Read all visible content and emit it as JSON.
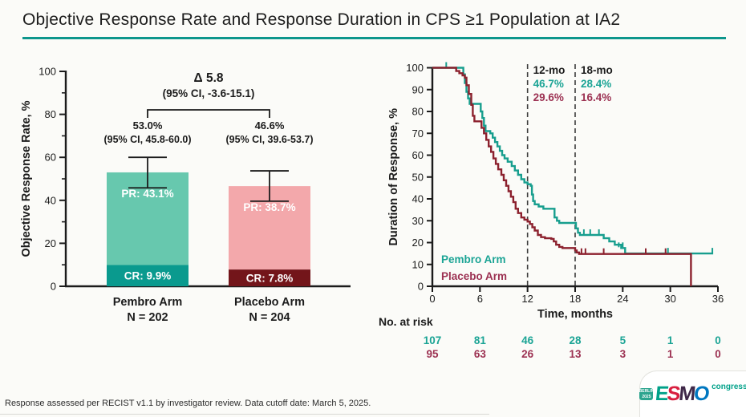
{
  "page": {
    "title": "Objective Response Rate and Response Duration in CPS ≥1 Population at IA2",
    "footnote": "Response assessed per RECIST v1.1 by investigator review. Data cutoff date: March 5, 2025."
  },
  "colors": {
    "title_underline": "#0d968c",
    "axis": "#1b1b1b",
    "pembro_light": "#67c8ae",
    "pembro_dark": "#0a9a8e",
    "placebo_light": "#f3a8ab",
    "placebo_dark": "#73151a",
    "pembro_line": "#179e8e",
    "placebo_line": "#8c212e",
    "pembro_text": "#1ba495",
    "placebo_text": "#9c3152",
    "milestone_label": "#1b1b1b",
    "dashed_line": "#3c3c3c"
  },
  "logo": {
    "badge": [
      "BERLIN",
      "2025"
    ],
    "badge_color": "#2ba48e",
    "letters": [
      {
        "ch": "E",
        "color": "#00a189"
      },
      {
        "ch": "S",
        "color": "#d81f3f"
      },
      {
        "ch": "M",
        "color": "#3f2849"
      },
      {
        "ch": "O",
        "color": "#0077c0"
      }
    ],
    "congress": "congress",
    "congress_color": "#00a189"
  },
  "chart_data": [
    {
      "type": "bar",
      "panel": "orr",
      "ylabel": "Objective Response Rate, %",
      "ylim": [
        0,
        100
      ],
      "yticks_labeled": [
        0,
        20,
        40,
        60,
        80,
        100
      ],
      "yticks_minor": [
        10,
        30,
        50,
        70,
        90
      ],
      "categories": [
        "Pembro Arm",
        "Placebo Arm"
      ],
      "n_labels": [
        "N = 202",
        "N = 204"
      ],
      "stack": {
        "cr": {
          "values": [
            9.9,
            7.8
          ],
          "labels": [
            "CR: 9.9%",
            "CR: 7.8%"
          ],
          "colors": [
            "#0a9a8e",
            "#73151a"
          ]
        },
        "pr": {
          "values": [
            43.1,
            38.7
          ],
          "labels": [
            "PR: 43.1%",
            "PR: 38.7%"
          ],
          "colors": [
            "#67c8ae",
            "#f3a8ab"
          ]
        }
      },
      "totals": [
        53.0,
        46.6
      ],
      "total_labels": [
        "53.0%",
        "46.6%"
      ],
      "ci_labels": [
        "(95% CI, 45.8-60.0)",
        "(95% CI, 39.6-53.7)"
      ],
      "ci": [
        [
          45.8,
          60.0
        ],
        [
          39.6,
          53.7
        ]
      ],
      "delta": {
        "label": "Δ 5.8",
        "ci": "(95% CI, -3.6-15.1)"
      }
    },
    {
      "type": "line",
      "panel": "dor",
      "ylabel": "Duration of Response, %",
      "xlabel": "Time, months",
      "xlim": [
        0,
        36
      ],
      "ylim": [
        0,
        100
      ],
      "xticks": [
        0,
        6,
        12,
        18,
        24,
        30,
        36
      ],
      "ytick_step": 10,
      "milestone_lines": [
        {
          "x": 12,
          "label": "12-mo",
          "pembro": "46.7%",
          "placebo": "29.6%"
        },
        {
          "x": 18,
          "label": "18-mo",
          "pembro": "28.4%",
          "placebo": "16.4%"
        }
      ],
      "series": [
        {
          "key": "pembro",
          "name": "Pembro Arm",
          "color": "#179e8e",
          "steps": [
            [
              0,
              100
            ],
            [
              3.7,
              100
            ],
            [
              3.9,
              97
            ],
            [
              4.1,
              93
            ],
            [
              4.3,
              89
            ],
            [
              4.5,
              86
            ],
            [
              4.7,
              83.5
            ],
            [
              5.9,
              83.5
            ],
            [
              6.1,
              80
            ],
            [
              6.3,
              77
            ],
            [
              6.5,
              73.5
            ],
            [
              6.7,
              71
            ],
            [
              7.3,
              70
            ],
            [
              7.6,
              68
            ],
            [
              7.9,
              66
            ],
            [
              8.2,
              64
            ],
            [
              8.5,
              62
            ],
            [
              8.8,
              60
            ],
            [
              9.1,
              58.5
            ],
            [
              9.5,
              57
            ],
            [
              10,
              55
            ],
            [
              10.4,
              53
            ],
            [
              10.8,
              51
            ],
            [
              11.2,
              49
            ],
            [
              11.6,
              47.5
            ],
            [
              12,
              46.7
            ],
            [
              12.4,
              46
            ],
            [
              12.55,
              42
            ],
            [
              12.7,
              39
            ],
            [
              12.9,
              37.5
            ],
            [
              13.4,
              36.5
            ],
            [
              14,
              35.5
            ],
            [
              15.2,
              35.5
            ],
            [
              15.4,
              31.5
            ],
            [
              15.7,
              30
            ],
            [
              16,
              29
            ],
            [
              17.9,
              29
            ],
            [
              18.1,
              26.5
            ],
            [
              18.35,
              24.5
            ],
            [
              18.6,
              23.5
            ],
            [
              21.3,
              23.5
            ],
            [
              21.6,
              22
            ],
            [
              22.3,
              20.5
            ],
            [
              23,
              19
            ],
            [
              23.8,
              17.5
            ],
            [
              24.3,
              15
            ],
            [
              35.4,
              15
            ]
          ],
          "censors": [
            [
              1.75,
              100
            ],
            [
              19.1,
              23.5
            ],
            [
              19.9,
              23.5
            ],
            [
              21,
              23.5
            ],
            [
              23.5,
              17.5
            ],
            [
              24,
              17.5
            ],
            [
              29.7,
              15
            ],
            [
              35.3,
              15
            ]
          ]
        },
        {
          "key": "placebo",
          "name": "Placebo Arm",
          "color": "#8c212e",
          "steps": [
            [
              0,
              100
            ],
            [
              2.8,
              100
            ],
            [
              3,
              98.5
            ],
            [
              3.4,
              97.5
            ],
            [
              3.8,
              96.5
            ],
            [
              4.1,
              95.5
            ],
            [
              4.3,
              92
            ],
            [
              4.6,
              88
            ],
            [
              4.9,
              83
            ],
            [
              5.1,
              78
            ],
            [
              5.3,
              75.5
            ],
            [
              6,
              75.5
            ],
            [
              6.2,
              72.5
            ],
            [
              6.5,
              70
            ],
            [
              6.8,
              67
            ],
            [
              7.1,
              64
            ],
            [
              7.4,
              61.5
            ],
            [
              7.7,
              58.5
            ],
            [
              8,
              56
            ],
            [
              8.3,
              53.5
            ],
            [
              8.7,
              51
            ],
            [
              9,
              48.5
            ],
            [
              9.3,
              46
            ],
            [
              9.6,
              43.5
            ],
            [
              9.9,
              41
            ],
            [
              10.2,
              38.5
            ],
            [
              10.5,
              35.5
            ],
            [
              10.8,
              33.5
            ],
            [
              11.2,
              31.5
            ],
            [
              11.6,
              30.5
            ],
            [
              12,
              29.6
            ],
            [
              12.3,
              28.5
            ],
            [
              12.6,
              27
            ],
            [
              12.9,
              25.5
            ],
            [
              13.3,
              23.5
            ],
            [
              13.7,
              22.5
            ],
            [
              14.2,
              22
            ],
            [
              15,
              21.7
            ],
            [
              15.3,
              20.5
            ],
            [
              15.6,
              19
            ],
            [
              16,
              18
            ],
            [
              16.4,
              17.5
            ],
            [
              17.6,
              17.5
            ],
            [
              18,
              16.4
            ],
            [
              18.2,
              15.5
            ],
            [
              18.5,
              14.8
            ],
            [
              32.6,
              14.8
            ],
            [
              32.6,
              0
            ]
          ],
          "censors": [
            [
              18.8,
              14.8
            ],
            [
              19.3,
              14.8
            ],
            [
              21.6,
              14.8
            ],
            [
              26.9,
              14.8
            ],
            [
              29.4,
              14.8
            ]
          ]
        }
      ],
      "at_risk": {
        "label": "No. at risk",
        "rows": [
          {
            "series": "pembro",
            "color": "#1ba495",
            "values": [
              "107",
              "81",
              "46",
              "28",
              "5",
              "1",
              "0"
            ]
          },
          {
            "series": "placebo",
            "color": "#9c3152",
            "values": [
              "95",
              "63",
              "26",
              "13",
              "3",
              "1",
              "0"
            ]
          }
        ]
      }
    }
  ]
}
